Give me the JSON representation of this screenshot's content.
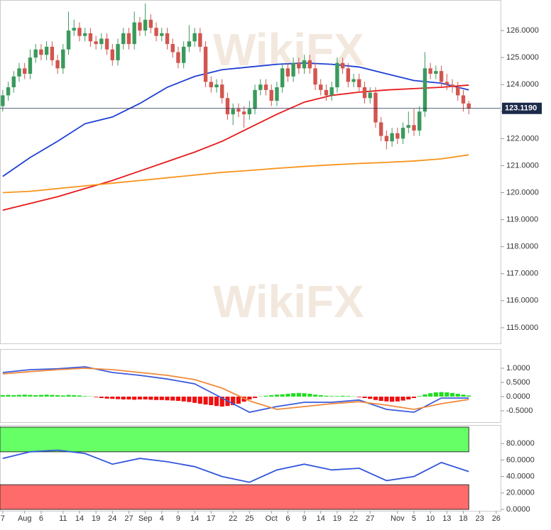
{
  "watermark": "WikiFX",
  "chart_data": [
    {
      "type": "candlestick",
      "up_color": "#3a9a5c",
      "down_color": "#d2554f",
      "open": [
        123.2,
        123.6,
        123.9,
        124.3,
        124.6,
        124.4,
        125.0,
        125.3,
        125.1,
        125.4,
        124.9,
        124.6,
        125.3,
        126.0,
        126.1,
        125.8,
        125.9,
        125.6,
        125.5,
        125.7,
        125.3,
        124.9,
        125.5,
        125.9,
        125.5,
        126.3,
        126.0,
        126.4,
        126.1,
        125.8,
        125.9,
        125.5,
        125.2,
        124.8,
        125.4,
        125.6,
        125.9,
        125.4,
        124.1,
        123.9,
        124.0,
        123.5,
        122.9,
        123.1,
        123.0,
        122.9,
        123.1,
        123.8,
        124.0,
        123.8,
        123.4,
        123.9,
        124.6,
        124.3,
        124.8,
        124.6,
        124.9,
        124.6,
        124.0,
        123.8,
        123.6,
        123.9,
        124.8,
        124.6,
        124.1,
        124.2,
        123.9,
        123.5,
        123.7,
        122.6,
        122.1,
        121.9,
        122.2,
        122.0,
        122.4,
        122.5,
        122.3,
        123.0,
        124.6,
        124.4,
        124.5,
        124.1,
        124.0,
        123.9,
        123.6,
        123.3
      ],
      "high": [
        123.8,
        124.1,
        124.5,
        124.8,
        124.8,
        125.3,
        125.5,
        125.5,
        125.6,
        125.6,
        125.1,
        125.5,
        126.7,
        126.4,
        126.3,
        126.1,
        126.1,
        125.8,
        125.9,
        125.9,
        125.5,
        125.7,
        126.1,
        126.1,
        126.7,
        126.5,
        127.0,
        126.6,
        126.3,
        126.1,
        126.1,
        125.7,
        125.4,
        125.6,
        126.2,
        126.1,
        126.1,
        125.6,
        124.3,
        124.2,
        124.2,
        123.7,
        123.3,
        123.3,
        123.2,
        123.4,
        124.0,
        124.2,
        124.2,
        124.0,
        124.1,
        124.8,
        124.8,
        125.0,
        125.0,
        125.1,
        125.1,
        124.8,
        124.2,
        124.0,
        124.1,
        125.0,
        125.0,
        124.8,
        124.4,
        124.4,
        124.1,
        123.9,
        123.9,
        122.8,
        122.3,
        122.4,
        122.4,
        122.6,
        123.0,
        123.1,
        123.2,
        125.2,
        124.8,
        124.7,
        124.7,
        124.4,
        124.2,
        124.1,
        123.8,
        123.4
      ],
      "low": [
        123.0,
        123.4,
        123.7,
        124.1,
        124.2,
        124.2,
        124.8,
        124.9,
        124.9,
        124.7,
        124.4,
        124.4,
        125.1,
        125.8,
        125.6,
        125.6,
        125.4,
        125.3,
        125.3,
        125.1,
        124.7,
        124.7,
        125.3,
        125.3,
        125.3,
        125.8,
        125.8,
        125.9,
        125.6,
        125.6,
        125.3,
        125.0,
        124.6,
        124.6,
        125.2,
        125.4,
        125.2,
        123.9,
        123.7,
        123.7,
        123.3,
        122.7,
        122.5,
        122.8,
        122.4,
        122.7,
        122.9,
        123.6,
        123.6,
        123.2,
        123.2,
        123.7,
        124.1,
        124.1,
        124.4,
        124.4,
        124.4,
        123.8,
        123.6,
        123.4,
        123.4,
        123.7,
        124.4,
        123.9,
        123.9,
        123.7,
        123.3,
        123.3,
        122.4,
        121.9,
        121.6,
        121.7,
        121.8,
        121.8,
        122.2,
        122.1,
        122.1,
        122.8,
        124.2,
        124.2,
        123.9,
        123.8,
        123.7,
        123.4,
        123.0,
        122.9
      ],
      "close": [
        123.6,
        123.9,
        124.3,
        124.6,
        124.4,
        125.0,
        125.3,
        125.1,
        125.4,
        124.9,
        124.6,
        125.3,
        126.0,
        126.1,
        125.8,
        125.9,
        125.6,
        125.5,
        125.7,
        125.3,
        124.9,
        125.5,
        125.9,
        125.5,
        126.3,
        126.0,
        126.4,
        126.1,
        125.8,
        125.9,
        125.5,
        125.2,
        124.8,
        125.4,
        125.6,
        125.9,
        125.4,
        124.1,
        123.9,
        124.0,
        123.5,
        122.9,
        123.1,
        123.0,
        122.9,
        123.1,
        123.8,
        124.0,
        123.8,
        123.4,
        123.9,
        124.6,
        124.3,
        124.8,
        124.6,
        124.9,
        124.6,
        124.0,
        123.8,
        123.6,
        123.9,
        124.8,
        124.6,
        124.1,
        124.2,
        123.9,
        123.5,
        123.7,
        122.6,
        122.1,
        121.9,
        122.2,
        122.0,
        122.4,
        122.5,
        122.3,
        123.0,
        124.6,
        124.4,
        124.5,
        124.1,
        124.0,
        123.9,
        123.6,
        123.3,
        123.12
      ],
      "lines": [
        {
          "color": "#1f3fd6",
          "x": [
            0,
            5,
            10,
            15,
            20,
            25,
            30,
            35,
            40,
            45,
            50,
            55,
            60,
            65,
            70,
            75,
            80,
            85
          ],
          "values": [
            120.6,
            121.3,
            121.9,
            122.55,
            122.8,
            123.3,
            123.9,
            124.3,
            124.55,
            124.65,
            124.75,
            124.8,
            124.75,
            124.65,
            124.4,
            124.15,
            124.05,
            123.8
          ]
        },
        {
          "color": "#e8191a",
          "x": [
            0,
            5,
            10,
            15,
            20,
            25,
            30,
            35,
            40,
            45,
            50,
            55,
            60,
            65,
            70,
            75,
            80,
            85
          ],
          "values": [
            119.35,
            119.6,
            119.85,
            120.15,
            120.45,
            120.8,
            121.15,
            121.5,
            121.9,
            122.4,
            122.9,
            123.35,
            123.6,
            123.72,
            123.8,
            123.85,
            123.9,
            123.98
          ]
        },
        {
          "color": "#f7941d",
          "x": [
            0,
            5,
            10,
            15,
            20,
            25,
            30,
            35,
            40,
            45,
            50,
            55,
            60,
            65,
            70,
            75,
            80,
            85
          ],
          "values": [
            120.0,
            120.05,
            120.15,
            120.25,
            120.35,
            120.45,
            120.55,
            120.65,
            120.75,
            120.82,
            120.9,
            120.97,
            121.03,
            121.08,
            121.12,
            121.17,
            121.25,
            121.4
          ]
        }
      ],
      "last_price": {
        "value": 123.119,
        "label": "123.1190"
      },
      "last_price_color": "#1c2a4a",
      "xlim": [
        -0.5,
        90.8
      ],
      "xticks": [
        {
          "value": 0,
          "label": "7"
        },
        {
          "value": 4,
          "label": "Aug"
        },
        {
          "value": 7,
          "label": "6"
        },
        {
          "value": 11,
          "label": "11"
        },
        {
          "value": 14,
          "label": "14"
        },
        {
          "value": 17,
          "label": "19"
        },
        {
          "value": 20,
          "label": "24"
        },
        {
          "value": 23,
          "label": "27"
        },
        {
          "value": 26,
          "label": "Sep"
        },
        {
          "value": 29,
          "label": "4"
        },
        {
          "value": 32,
          "label": "9"
        },
        {
          "value": 35,
          "label": "14"
        },
        {
          "value": 38,
          "label": "17"
        },
        {
          "value": 42,
          "label": "22"
        },
        {
          "value": 45,
          "label": "25"
        },
        {
          "value": 49,
          "label": "Oct"
        },
        {
          "value": 52,
          "label": "6"
        },
        {
          "value": 55,
          "label": "9"
        },
        {
          "value": 58,
          "label": "14"
        },
        {
          "value": 61,
          "label": "19"
        },
        {
          "value": 64,
          "label": "22"
        },
        {
          "value": 67,
          "label": "27"
        },
        {
          "value": 72,
          "label": "Nov"
        },
        {
          "value": 75,
          "label": "5"
        },
        {
          "value": 78,
          "label": "10"
        },
        {
          "value": 81,
          "label": "13"
        },
        {
          "value": 84,
          "label": "18"
        },
        {
          "value": 87,
          "label": "23"
        },
        {
          "value": 90,
          "label": "26"
        }
      ],
      "ylim": [
        114.42,
        127.13
      ],
      "yticks": [
        {
          "value": 115,
          "label": "115.0000"
        },
        {
          "value": 116,
          "label": "116.0000"
        },
        {
          "value": 117,
          "label": "117.0000"
        },
        {
          "value": 118,
          "label": "118.0000"
        },
        {
          "value": 119,
          "label": "119.0000"
        },
        {
          "value": 120,
          "label": "120.0000"
        },
        {
          "value": 121,
          "label": "121.0000"
        },
        {
          "value": 122,
          "label": "122.0000"
        },
        {
          "value": 123,
          "label": "123.0000"
        },
        {
          "value": 124,
          "label": "124.0000"
        },
        {
          "value": 125,
          "label": "125.0000"
        },
        {
          "value": 126,
          "label": "126.0000"
        }
      ]
    },
    {
      "type": "macd",
      "histogram": [
        0.05,
        0.06,
        0.05,
        0.06,
        0.07,
        0.06,
        0.05,
        0.06,
        0.07,
        0.06,
        0.05,
        0.04,
        0.06,
        0.05,
        0.04,
        0.02,
        0.01,
        -0.02,
        -0.05,
        -0.07,
        -0.08,
        -0.09,
        -0.1,
        -0.1,
        -0.11,
        -0.1,
        -0.1,
        -0.11,
        -0.12,
        -0.12,
        -0.13,
        -0.14,
        -0.15,
        -0.17,
        -0.19,
        -0.22,
        -0.25,
        -0.28,
        -0.3,
        -0.33,
        -0.35,
        -0.33,
        -0.3,
        -0.25,
        -0.18,
        -0.1,
        -0.05,
        0.01,
        0.03,
        0.05,
        0.07,
        0.08,
        0.1,
        0.12,
        0.13,
        0.12,
        0.1,
        0.07,
        0.05,
        0.03,
        0.02,
        0.02,
        0.03,
        0.02,
        0.01,
        -0.02,
        -0.05,
        -0.08,
        -0.12,
        -0.15,
        -0.17,
        -0.18,
        -0.17,
        -0.14,
        -0.1,
        -0.05,
        0.02,
        0.08,
        0.12,
        0.15,
        0.16,
        0.15,
        0.13,
        0.1,
        0.07,
        0.04
      ],
      "up_color": "#22dd22",
      "down_color": "#ee1111",
      "lines": [
        {
          "color": "#3b5bdb",
          "x": [
            0,
            5,
            10,
            15,
            20,
            25,
            30,
            35,
            40,
            45,
            50,
            55,
            60,
            65,
            70,
            75,
            80,
            85
          ],
          "values": [
            0.85,
            0.95,
            0.98,
            1.05,
            0.85,
            0.75,
            0.62,
            0.45,
            -0.05,
            -0.55,
            -0.35,
            -0.2,
            -0.2,
            -0.12,
            -0.45,
            -0.55,
            -0.05,
            -0.05
          ]
        },
        {
          "color": "#f08a3c",
          "x": [
            0,
            5,
            10,
            15,
            20,
            25,
            30,
            35,
            40,
            45,
            50,
            55,
            60,
            65,
            70,
            75,
            80,
            85
          ],
          "values": [
            0.8,
            0.88,
            0.95,
            1.0,
            0.95,
            0.85,
            0.75,
            0.6,
            0.3,
            -0.15,
            -0.45,
            -0.35,
            -0.25,
            -0.18,
            -0.3,
            -0.45,
            -0.25,
            -0.1
          ]
        }
      ],
      "ylim": [
        -0.825,
        1.65
      ],
      "yticks": [
        {
          "value": 1,
          "label": "1.0000"
        },
        {
          "value": 0.5,
          "label": "0.5000"
        },
        {
          "value": 0,
          "label": "0.0000"
        },
        {
          "value": -0.5,
          "label": "-0.5000"
        }
      ]
    },
    {
      "type": "rsi",
      "overbought": 70,
      "oversold": 30,
      "overbought_color": "#66ff66",
      "oversold_color": "#ff6b6b",
      "line": {
        "color": "#3355dd",
        "x": [
          0,
          5,
          10,
          15,
          20,
          25,
          30,
          35,
          40,
          45,
          50,
          55,
          60,
          65,
          70,
          75,
          80,
          85
        ],
        "values": [
          62,
          70,
          72,
          68,
          55,
          62,
          58,
          52,
          40,
          33,
          48,
          55,
          48,
          50,
          35,
          40,
          57,
          46
        ]
      },
      "ylim": [
        -1.7,
        101.7
      ],
      "yticks": [
        {
          "value": 0,
          "label": "0.0000"
        },
        {
          "value": 20,
          "label": "20.0000"
        },
        {
          "value": 40,
          "label": "40.0000"
        },
        {
          "value": 60,
          "label": "60.0000"
        },
        {
          "value": 80,
          "label": "80.0000"
        }
      ]
    }
  ]
}
